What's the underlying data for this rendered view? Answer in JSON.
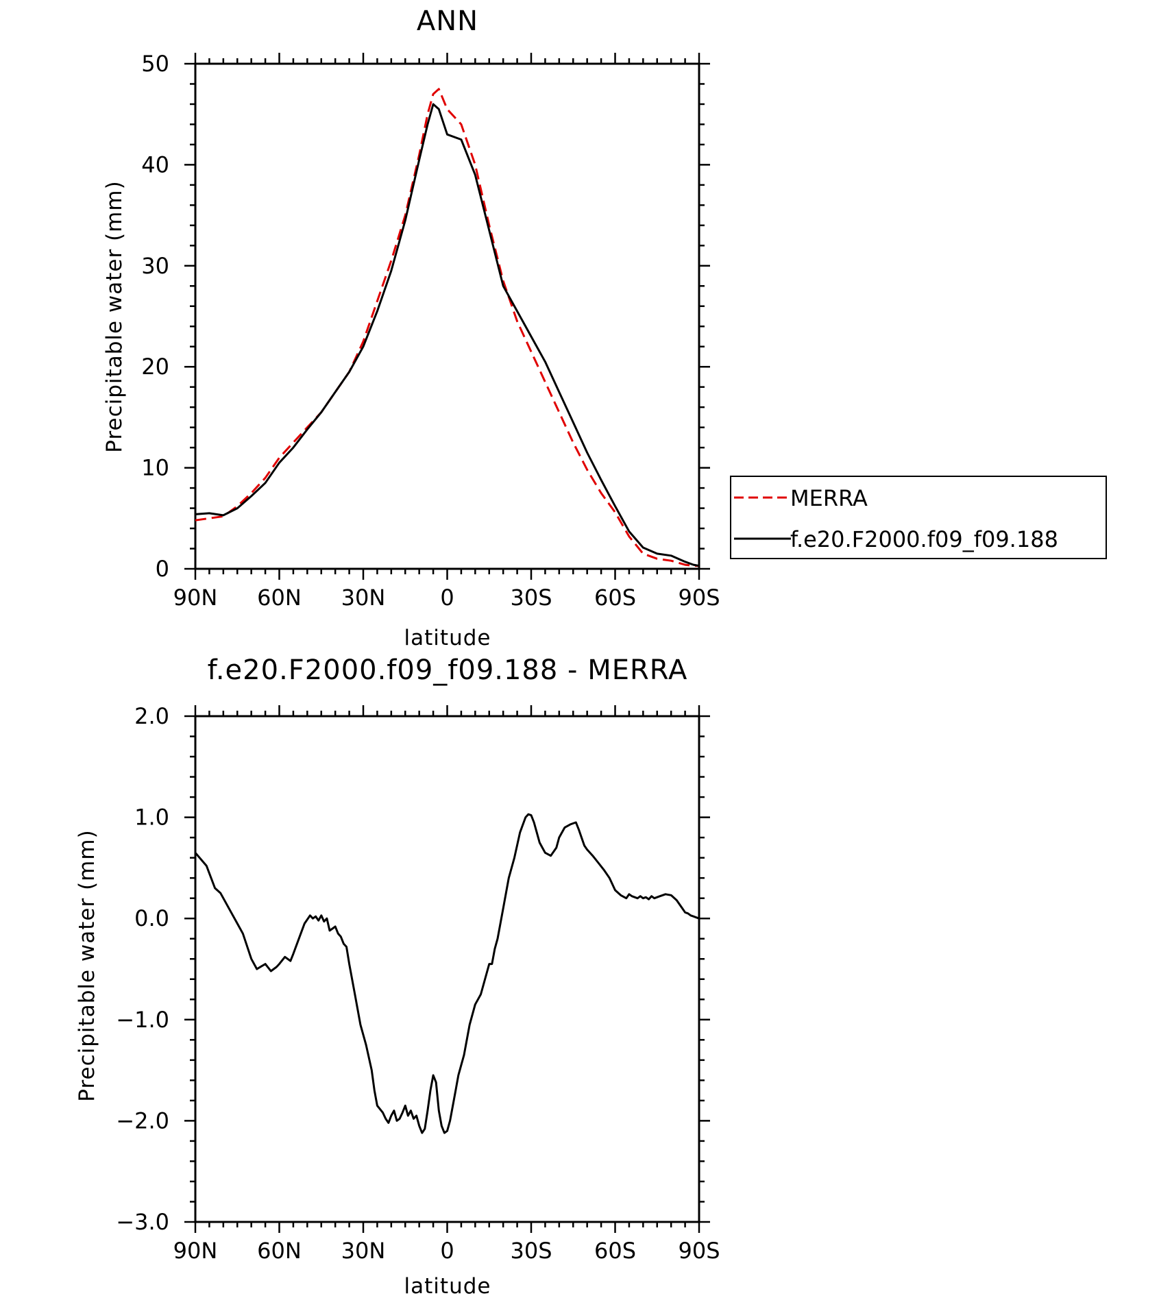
{
  "charts": [
    {
      "type": "line",
      "title": "ANN",
      "xlabel": "latitude",
      "ylabel": "Precipitable water (mm)",
      "xlim": [
        90,
        -90
      ],
      "ylim": [
        0,
        50
      ],
      "yticks": [
        "0",
        "10",
        "20",
        "30",
        "40",
        "50"
      ],
      "ytick_values": [
        0,
        10,
        20,
        30,
        40,
        50
      ],
      "xticks": [
        "90N",
        "60N",
        "30N",
        "0",
        "30S",
        "60S",
        "90S"
      ],
      "xtick_values": [
        90,
        60,
        30,
        0,
        -30,
        -60,
        -90
      ],
      "legend": {
        "position": "right",
        "entries": [
          {
            "name": "MERRA",
            "color": "#e00000",
            "style": "dashed"
          },
          {
            "name": "f.e20.F2000.f09_f09.188",
            "color": "#000000",
            "style": "solid"
          }
        ]
      },
      "series": [
        {
          "name": "MERRA",
          "color": "#e00000",
          "dash": true,
          "x": [
            90,
            85,
            80,
            75,
            70,
            65,
            60,
            55,
            50,
            45,
            40,
            35,
            30,
            25,
            20,
            15,
            10,
            7,
            5,
            3,
            0,
            -5,
            -10,
            -15,
            -20,
            -25,
            -30,
            -35,
            -40,
            -45,
            -50,
            -55,
            -60,
            -65,
            -70,
            -75,
            -80,
            -85,
            -88,
            -90
          ],
          "y": [
            4.8,
            5.0,
            5.2,
            6.2,
            7.5,
            9.0,
            11.0,
            12.5,
            14.0,
            15.5,
            17.5,
            19.5,
            22.5,
            26.5,
            30.5,
            35.0,
            41.0,
            45.0,
            47.0,
            47.5,
            45.5,
            44.0,
            40.0,
            34.0,
            28.5,
            24.5,
            21.5,
            18.5,
            15.5,
            12.5,
            9.8,
            7.5,
            5.6,
            3.2,
            1.5,
            1.0,
            0.8,
            0.4,
            0.3,
            0.3
          ]
        },
        {
          "name": "f.e20.F2000.f09_f09.188",
          "color": "#000000",
          "dash": false,
          "x": [
            90,
            85,
            80,
            75,
            70,
            65,
            60,
            55,
            50,
            45,
            40,
            35,
            30,
            25,
            20,
            15,
            10,
            7,
            5,
            3,
            0,
            -5,
            -10,
            -15,
            -20,
            -25,
            -30,
            -35,
            -40,
            -45,
            -50,
            -55,
            -60,
            -65,
            -70,
            -75,
            -80,
            -85,
            -88,
            -90
          ],
          "y": [
            5.4,
            5.5,
            5.3,
            6.0,
            7.2,
            8.5,
            10.5,
            12.0,
            13.8,
            15.5,
            17.5,
            19.5,
            22.0,
            25.5,
            29.5,
            34.5,
            40.5,
            44.0,
            46.0,
            45.5,
            43.0,
            42.5,
            39.0,
            33.5,
            28.0,
            25.5,
            23.0,
            20.5,
            17.5,
            14.5,
            11.5,
            8.8,
            6.2,
            3.7,
            2.1,
            1.5,
            1.3,
            0.7,
            0.4,
            0.3
          ]
        }
      ]
    },
    {
      "type": "line",
      "title": "f.e20.F2000.f09_f09.188 - MERRA",
      "xlabel": "latitude",
      "ylabel": "Precipitable water (mm)",
      "xlim": [
        90,
        -90
      ],
      "ylim": [
        -3.0,
        2.0
      ],
      "yticks": [
        "-3.0",
        "-2.0",
        "-1.0",
        "0.0",
        "1.0",
        "2.0"
      ],
      "ytick_values": [
        -3.0,
        -2.0,
        -1.0,
        0.0,
        1.0,
        2.0
      ],
      "xticks": [
        "90N",
        "60N",
        "30N",
        "0",
        "30S",
        "60S",
        "90S"
      ],
      "xtick_values": [
        90,
        60,
        30,
        0,
        -30,
        -60,
        -90
      ],
      "series": [
        {
          "name": "",
          "color": "#000000",
          "dash": false,
          "x": [
            90,
            86,
            83,
            81,
            77,
            75,
            73,
            70,
            68,
            65,
            63,
            61,
            60,
            58,
            56,
            55,
            53,
            51,
            49,
            48,
            47,
            46,
            45,
            44,
            43,
            42,
            41,
            40,
            39,
            38,
            37,
            36,
            35,
            33,
            31,
            29,
            27,
            26,
            25,
            23,
            22,
            21,
            20,
            19,
            18,
            17,
            16,
            15,
            14,
            13,
            12,
            11,
            10,
            9,
            8,
            7,
            6,
            5,
            4,
            3,
            2,
            1,
            0,
            -1,
            -2,
            -3,
            -4,
            -5,
            -6,
            -8,
            -10,
            -11,
            -12,
            -13,
            -14,
            -15,
            -16,
            -17,
            -18,
            -20,
            -22,
            -24,
            -26,
            -28,
            -29,
            -30,
            -31,
            -32,
            -33,
            -34,
            -35,
            -37,
            -39,
            -40,
            -42,
            -44,
            -46,
            -47,
            -48,
            -49,
            -50,
            -52,
            -54,
            -56,
            -58,
            -60,
            -62,
            -64,
            -65,
            -66,
            -67,
            -68,
            -69,
            -70,
            -71,
            -72,
            -73,
            -74,
            -76,
            -78,
            -80,
            -82,
            -84,
            -85,
            -86,
            -87,
            -88,
            -90
          ],
          "y": [
            0.65,
            0.52,
            0.3,
            0.25,
            0.05,
            -0.05,
            -0.15,
            -0.4,
            -0.5,
            -0.45,
            -0.52,
            -0.48,
            -0.45,
            -0.38,
            -0.42,
            -0.35,
            -0.2,
            -0.05,
            0.03,
            0.0,
            0.02,
            -0.02,
            0.03,
            -0.03,
            0.0,
            -0.12,
            -0.1,
            -0.08,
            -0.15,
            -0.18,
            -0.25,
            -0.28,
            -0.45,
            -0.75,
            -1.05,
            -1.25,
            -1.5,
            -1.7,
            -1.85,
            -1.92,
            -1.98,
            -2.02,
            -1.95,
            -1.9,
            -2.0,
            -1.98,
            -1.92,
            -1.85,
            -1.95,
            -1.9,
            -1.98,
            -1.95,
            -2.05,
            -2.12,
            -2.08,
            -1.9,
            -1.7,
            -1.55,
            -1.62,
            -1.9,
            -2.05,
            -2.12,
            -2.1,
            -2.0,
            -1.85,
            -1.7,
            -1.55,
            -1.45,
            -1.35,
            -1.05,
            -0.85,
            -0.8,
            -0.75,
            -0.65,
            -0.55,
            -0.45,
            -0.45,
            -0.3,
            -0.2,
            0.1,
            0.4,
            0.6,
            0.85,
            1.0,
            1.03,
            1.02,
            0.95,
            0.85,
            0.75,
            0.7,
            0.65,
            0.62,
            0.7,
            0.8,
            0.9,
            0.93,
            0.95,
            0.88,
            0.8,
            0.72,
            0.68,
            0.62,
            0.55,
            0.48,
            0.4,
            0.28,
            0.23,
            0.2,
            0.24,
            0.22,
            0.21,
            0.2,
            0.22,
            0.2,
            0.21,
            0.19,
            0.22,
            0.2,
            0.22,
            0.24,
            0.23,
            0.18,
            0.1,
            0.06,
            0.05,
            0.03,
            0.02,
            0.0
          ]
        }
      ]
    }
  ]
}
